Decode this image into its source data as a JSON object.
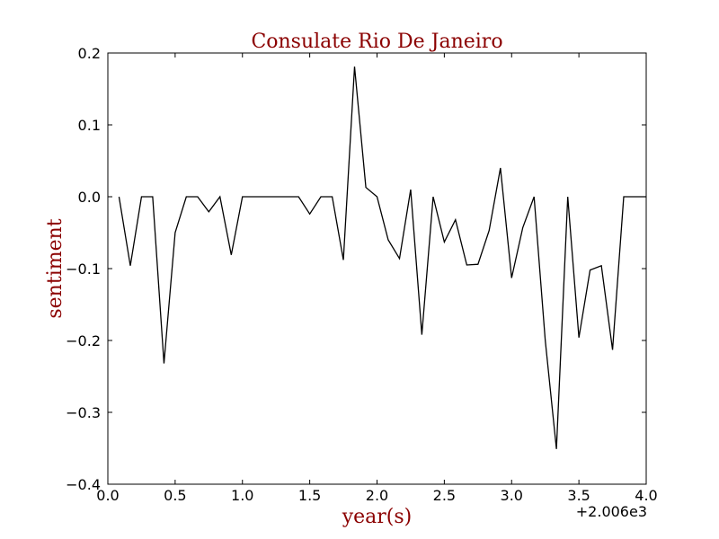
{
  "chart_data": {
    "type": "line",
    "title": "Consulate Rio De Janeiro",
    "xlabel": "year(s)",
    "ylabel": "sentiment",
    "x_offset_label": "+2.006e3",
    "xlim": [
      0.0,
      4.0
    ],
    "ylim": [
      -0.4,
      0.2
    ],
    "x_ticks": [
      0.0,
      0.5,
      1.0,
      1.5,
      2.0,
      2.5,
      3.0,
      3.5,
      4.0
    ],
    "x_tick_labels": [
      "0.0",
      "0.5",
      "1.0",
      "1.5",
      "2.0",
      "2.5",
      "3.0",
      "3.5",
      "4.0"
    ],
    "y_ticks": [
      -0.4,
      -0.3,
      -0.2,
      -0.1,
      0.0,
      0.1,
      0.2
    ],
    "y_tick_labels": [
      "−0.4",
      "−0.3",
      "−0.2",
      "−0.1",
      "0.0",
      "0.1",
      "0.2"
    ],
    "grid": false,
    "colors": {
      "title": "#8b0000",
      "axis_labels": "#8b0000",
      "line": "#000000",
      "axes": "#000000",
      "background": "#ffffff"
    },
    "series": [
      {
        "x": [
          0.083,
          0.167,
          0.25,
          0.333,
          0.417,
          0.5,
          0.583,
          0.667,
          0.75,
          0.833,
          0.917,
          1.0,
          1.083,
          1.167,
          1.25,
          1.333,
          1.417,
          1.5,
          1.583,
          1.667,
          1.75,
          1.833,
          1.917,
          2.0,
          2.083,
          2.167,
          2.25,
          2.333,
          2.417,
          2.5,
          2.583,
          2.667,
          2.75,
          2.833,
          2.917,
          3.0,
          3.083,
          3.167,
          3.25,
          3.333,
          3.417,
          3.5,
          3.583,
          3.667,
          3.75,
          3.833,
          3.917,
          4.0
        ],
        "values": [
          0.0,
          -0.096,
          0.0,
          0.0,
          -0.232,
          -0.05,
          0.0,
          0.0,
          -0.021,
          0.0,
          -0.081,
          0.0,
          0.0,
          0.0,
          0.0,
          0.0,
          0.0,
          -0.024,
          0.0,
          0.0,
          -0.088,
          0.181,
          0.013,
          0.0,
          -0.06,
          -0.086,
          0.01,
          -0.192,
          0.0,
          -0.063,
          -0.032,
          -0.095,
          -0.094,
          -0.047,
          0.04,
          -0.113,
          -0.043,
          0.0,
          -0.2,
          -0.351,
          0.0,
          -0.196,
          -0.102,
          -0.096,
          -0.213,
          0.0,
          0.0,
          0.0
        ]
      }
    ]
  }
}
